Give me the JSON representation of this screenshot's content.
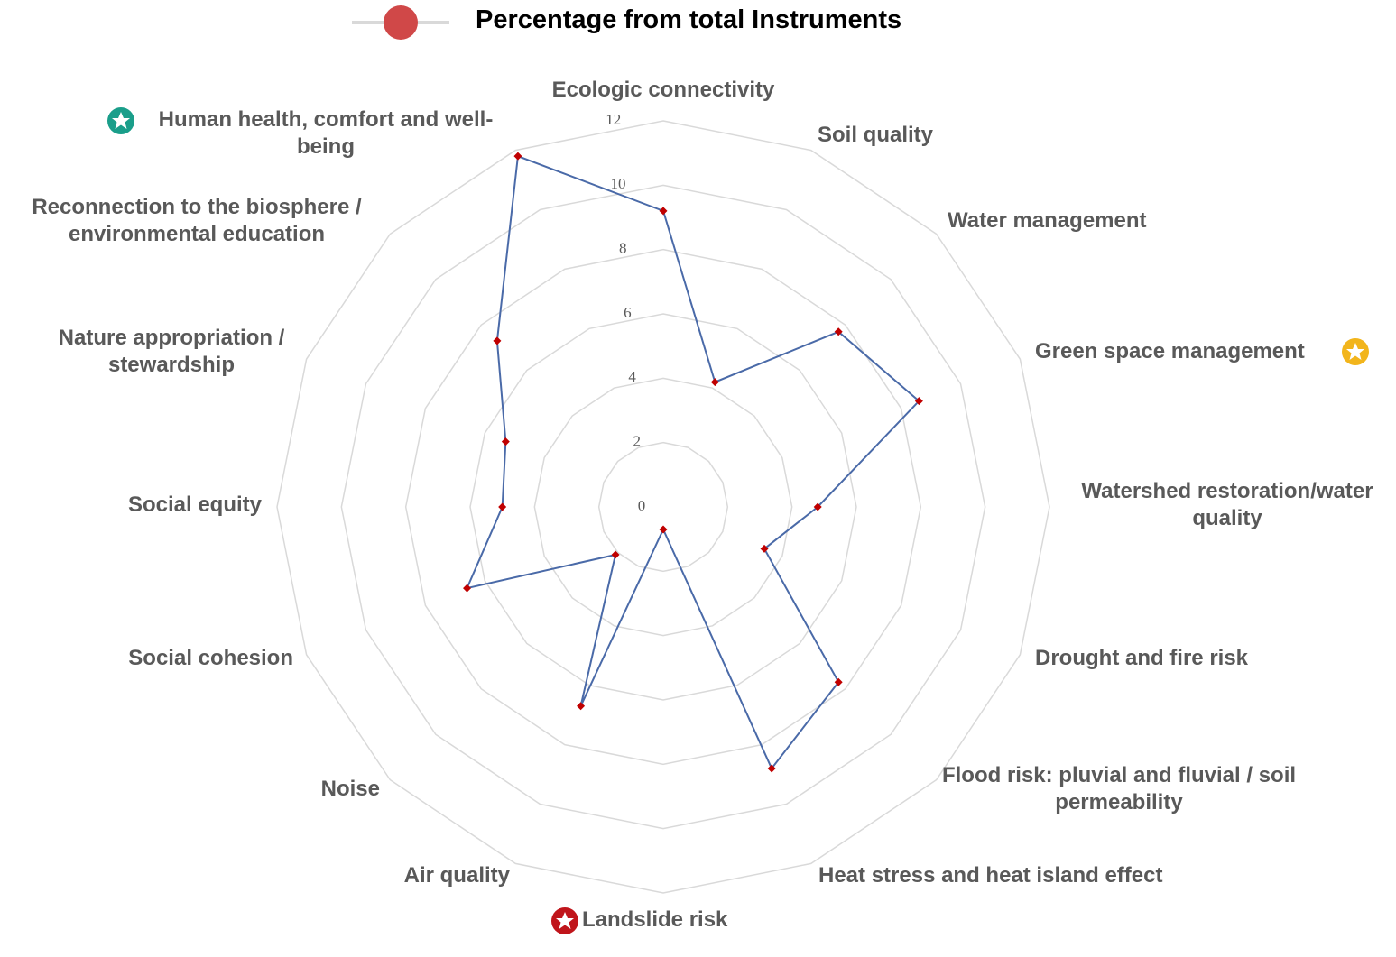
{
  "chart_data": {
    "type": "radar",
    "categories": [
      "Ecologic connectivity",
      "Soil quality",
      "Water management",
      "Green space management",
      "Watershed restoration/water quality",
      "Drought and fire risk",
      "Flood risk: pluvial and fluvial / soil permeability",
      "Heat stress and heat island effect",
      "Landslide risk",
      "Air quality",
      "Noise",
      "Social cohesion",
      "Social equity",
      "Nature appropriation / stewardship",
      "Reconnection to the biosphere / environmental education",
      "Human health, comfort and well-being"
    ],
    "series": [
      {
        "name": "Percentage from total Instruments",
        "color": "#4a6aa8",
        "marker_color": "#c00000",
        "legend_color": "#d04848",
        "values": [
          9.2,
          4.2,
          7.7,
          8.6,
          4.8,
          3.4,
          7.7,
          8.8,
          0.7,
          6.7,
          2.1,
          6.6,
          5.0,
          5.3,
          7.3,
          11.8
        ]
      }
    ],
    "ylim": [
      0,
      12
    ],
    "yticks": [
      0,
      2,
      4,
      6,
      8,
      10,
      12
    ],
    "grid": true,
    "legend": "top"
  }
}
